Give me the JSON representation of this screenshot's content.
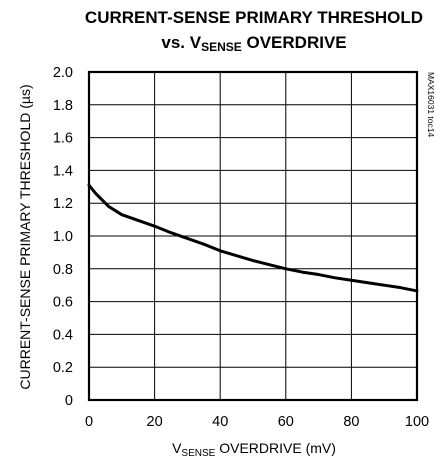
{
  "chart_data": {
    "type": "line",
    "title_line1": "CURRENT-SENSE PRIMARY THRESHOLD",
    "title_line2_prefix": "vs. V",
    "title_line2_sub": "SENSE",
    "title_line2_suffix": " OVERDRIVE",
    "xlabel_prefix": "V",
    "xlabel_sub": "SENSE",
    "xlabel_suffix": " OVERDRIVE (mV)",
    "ylabel": "CURRENT-SENSE PRIMARY THRESHOLD (µs)",
    "side_note": "MAX16031 toc14",
    "xlim": [
      0,
      100
    ],
    "ylim": [
      0,
      2.0
    ],
    "x_ticks": [
      "0",
      "20",
      "40",
      "60",
      "80",
      "100"
    ],
    "y_ticks": [
      "0",
      "0.2",
      "0.4",
      "0.6",
      "0.8",
      "1.0",
      "1.2",
      "1.4",
      "1.6",
      "1.8",
      "2.0"
    ],
    "grid": true,
    "series": [
      {
        "x": [
          0,
          2,
          4,
          6,
          8,
          10,
          15,
          20,
          25,
          30,
          35,
          40,
          45,
          50,
          55,
          60,
          65,
          70,
          75,
          80,
          85,
          90,
          95,
          100
        ],
        "y": [
          1.31,
          1.26,
          1.22,
          1.18,
          1.155,
          1.13,
          1.095,
          1.06,
          1.02,
          0.985,
          0.95,
          0.91,
          0.88,
          0.85,
          0.825,
          0.8,
          0.78,
          0.765,
          0.745,
          0.73,
          0.715,
          0.7,
          0.685,
          0.665
        ]
      }
    ]
  }
}
